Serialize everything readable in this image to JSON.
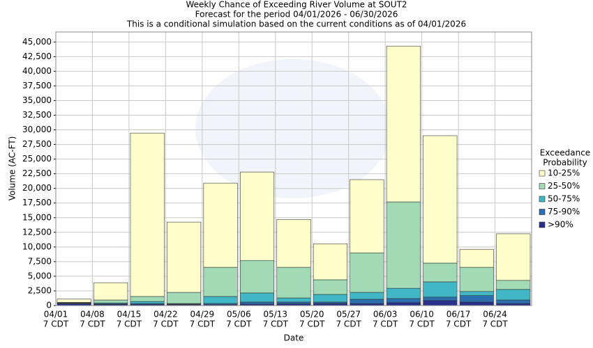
{
  "chart_data": {
    "type": "stacked-bar",
    "title": [
      "Weekly Chance of Exceeding River Volume at SOUT2",
      "Forecast for the period 04/01/2026 - 06/30/2026",
      "This is a conditional simulation based on the current conditions as of 04/01/2026"
    ],
    "x_label": "Date",
    "y_label": "Volume (AC-FT)",
    "legend_title": [
      "Exceedance",
      "Probability"
    ],
    "categories": [
      [
        "04/01",
        "7 CDT"
      ],
      [
        "04/08",
        "7 CDT"
      ],
      [
        "04/15",
        "7 CDT"
      ],
      [
        "04/22",
        "7 CDT"
      ],
      [
        "04/29",
        "7 CDT"
      ],
      [
        "05/06",
        "7 CDT"
      ],
      [
        "05/13",
        "7 CDT"
      ],
      [
        "05/20",
        "7 CDT"
      ],
      [
        "05/27",
        "7 CDT"
      ],
      [
        "06/03",
        "7 CDT"
      ],
      [
        "06/10",
        "7 CDT"
      ],
      [
        "06/17",
        "7 CDT"
      ],
      [
        "06/24",
        "7 CDT"
      ]
    ],
    "series": [
      {
        "name": ">90%",
        "color": "#272f8a",
        "values": [
          300,
          200,
          200,
          150,
          150,
          250,
          300,
          350,
          350,
          500,
          850,
          600,
          350
        ]
      },
      {
        "name": "75-90%",
        "color": "#2c6fb0",
        "values": [
          100,
          100,
          150,
          100,
          200,
          350,
          300,
          250,
          720,
          700,
          600,
          1100,
          600
        ]
      },
      {
        "name": "50-75%",
        "color": "#41b6c4",
        "values": [
          50,
          150,
          350,
          100,
          1200,
          1550,
          700,
          1300,
          1180,
          1750,
          2600,
          700,
          1800
        ]
      },
      {
        "name": "25-50%",
        "color": "#a1dab4",
        "values": [
          100,
          500,
          850,
          1900,
          4980,
          5550,
          5230,
          2500,
          6750,
          14750,
          3200,
          4130,
          1550
        ]
      },
      {
        "name": "10-25%",
        "color": "#ffffcc",
        "values": [
          550,
          2950,
          27900,
          12000,
          14370,
          15100,
          8170,
          6150,
          12500,
          26600,
          21750,
          3070,
          7950
        ]
      }
    ],
    "ylim": [
      0,
      46700
    ],
    "yticks": [
      0,
      {
        "value": 2500,
        "label": "2,500"
      },
      {
        "value": 5000,
        "label": "5,000"
      },
      {
        "value": 7500,
        "label": "7,500"
      },
      {
        "value": 10000,
        "label": "10,000"
      },
      {
        "value": 12500,
        "label": "12,500"
      },
      {
        "value": 15000,
        "label": "15,000"
      },
      {
        "value": 17500,
        "label": "17,500"
      },
      {
        "value": 20000,
        "label": "20,000"
      },
      {
        "value": 22500,
        "label": "22,500"
      },
      {
        "value": 25000,
        "label": "25,000"
      },
      {
        "value": 27500,
        "label": "27,500"
      },
      {
        "value": 30000,
        "label": "30,000"
      },
      {
        "value": 32500,
        "label": "32,500"
      },
      {
        "value": 35000,
        "label": "35,000"
      },
      {
        "value": 37500,
        "label": "37,500"
      },
      {
        "value": 40000,
        "label": "40,000"
      },
      {
        "value": 42500,
        "label": "42,500"
      },
      {
        "value": 45000,
        "label": "45,000"
      }
    ],
    "grid": true
  }
}
